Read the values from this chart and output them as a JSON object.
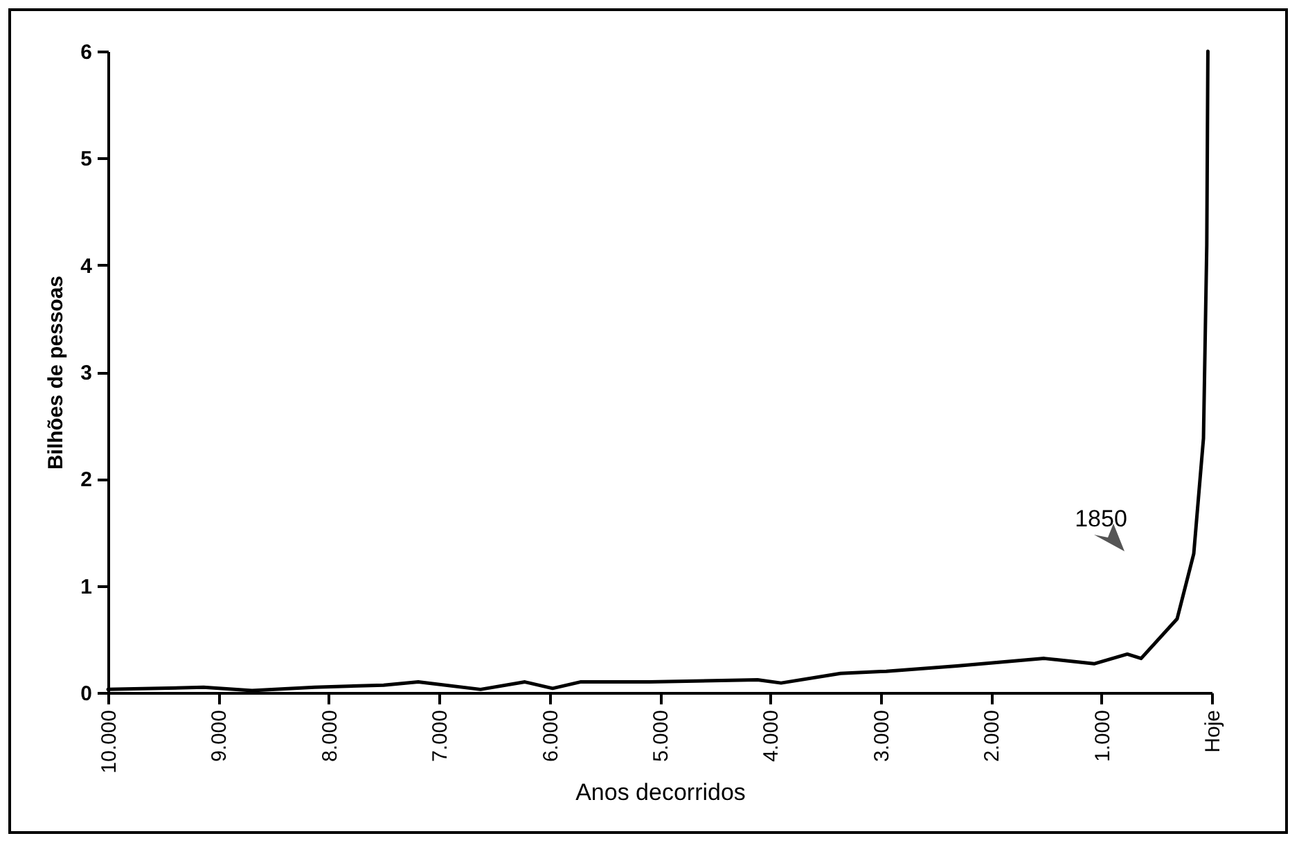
{
  "chart_data": {
    "type": "line",
    "xlabel": "Anos decorridos",
    "ylabel": "Bilhões de pessoas",
    "x": [
      10000,
      9134,
      8695,
      8130,
      7503,
      7189,
      6625,
      6223,
      5972,
      5721,
      5094,
      4115,
      3902,
      3363,
      2949,
      2309,
      1518,
      1066,
      765,
      640,
      314,
      163,
      75,
      45,
      35
    ],
    "series": [
      {
        "color": "#000000",
        "values": [
          0.03,
          0.05,
          0.02,
          0.05,
          0.07,
          0.1,
          0.03,
          0.1,
          0.04,
          0.1,
          0.1,
          0.12,
          0.09,
          0.18,
          0.2,
          0.25,
          0.32,
          0.27,
          0.36,
          0.32,
          0.69,
          1.3,
          2.38,
          4.19,
          6.0
        ]
      }
    ],
    "xlim": [
      10000,
      0
    ],
    "xticks": [
      {
        "value": 10000,
        "label": "10.000"
      },
      {
        "value": 9000,
        "label": "9.000"
      },
      {
        "value": 8000,
        "label": "8.000"
      },
      {
        "value": 7000,
        "label": "7.000"
      },
      {
        "value": 6000,
        "label": "6.000"
      },
      {
        "value": 5000,
        "label": "5.000"
      },
      {
        "value": 4000,
        "label": "4.000"
      },
      {
        "value": 3000,
        "label": "3.000"
      },
      {
        "value": 2000,
        "label": "2.000"
      },
      {
        "value": 1000,
        "label": "1.000"
      },
      {
        "value": 0,
        "label": "Hoje"
      }
    ],
    "ylim": [
      0,
      6
    ],
    "yticks": [
      0,
      1,
      2,
      3,
      4,
      5,
      6
    ],
    "annotations": [
      "1850"
    ],
    "grid": false,
    "legend": false,
    "marker": "none",
    "line_style": "solid"
  }
}
